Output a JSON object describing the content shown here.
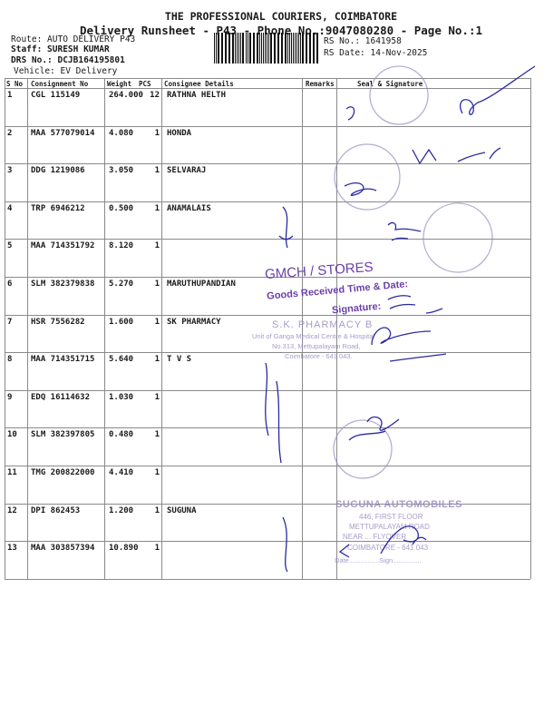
{
  "header": {
    "company": "THE PROFESSIONAL COURIERS, COIMBATORE",
    "subtitle": "Delivery Runsheet - P43 - Phone No.:9047080280 - Page No.:1",
    "route": "Route: AUTO DELIVERY P43",
    "staff": "Staff: SURESH KUMAR",
    "drs_no": "DRS No.: DCJB164195801",
    "vehicle": "Vehicle: EV Delivery",
    "rs_no": "RS No.: 1641958",
    "rs_date": "RS Date: 14-Nov-2025"
  },
  "table": {
    "columns": [
      "S No",
      "Consignment No",
      "Weight",
      "PCS",
      "Consignee Details",
      "Remarks",
      "Seal & Signature"
    ],
    "rows": [
      {
        "sno": "1",
        "consignment": "CGL 115149",
        "weight": "264.000",
        "pcs": "12",
        "consignee": "RATHNA HELTH"
      },
      {
        "sno": "2",
        "consignment": "MAA 577079014",
        "weight": "4.080",
        "pcs": "1",
        "consignee": "HONDA"
      },
      {
        "sno": "3",
        "consignment": "DDG 1219086",
        "weight": "3.050",
        "pcs": "1",
        "consignee": "SELVARAJ"
      },
      {
        "sno": "4",
        "consignment": "TRP 6946212",
        "weight": "0.500",
        "pcs": "1",
        "consignee": "ANAMALAIS"
      },
      {
        "sno": "5",
        "consignment": "MAA 714351792",
        "weight": "8.120",
        "pcs": "1",
        "consignee": ""
      },
      {
        "sno": "6",
        "consignment": "SLM 382379838",
        "weight": "5.270",
        "pcs": "1",
        "consignee": "MARUTHUPANDIAN"
      },
      {
        "sno": "7",
        "consignment": "HSR 7556282",
        "weight": "1.600",
        "pcs": "1",
        "consignee": "SK PHARMACY"
      },
      {
        "sno": "8",
        "consignment": "MAA 714351715",
        "weight": "5.640",
        "pcs": "1",
        "consignee": "T V S"
      },
      {
        "sno": "9",
        "consignment": "EDQ 16114632",
        "weight": "1.030",
        "pcs": "1",
        "consignee": ""
      },
      {
        "sno": "10",
        "consignment": "SLM 382397805",
        "weight": "0.480",
        "pcs": "1",
        "consignee": ""
      },
      {
        "sno": "11",
        "consignment": "TMG 200822000",
        "weight": "4.410",
        "pcs": "1",
        "consignee": ""
      },
      {
        "sno": "12",
        "consignment": "DPI 862453",
        "weight": "1.200",
        "pcs": "1",
        "consignee": "SUGUNA"
      },
      {
        "sno": "13",
        "consignment": "MAA 303857394",
        "weight": "10.890",
        "pcs": "1",
        "consignee": ""
      }
    ]
  },
  "stamps": {
    "gmch": {
      "line1": "GMCH / STORES",
      "line2": "Goods Received Time & Date:",
      "line3": "Signature:"
    },
    "sk_pharmacy": {
      "line1": "S.K. PHARMACY B",
      "line2": "Unit of Ganga Medical Centre & Hospital",
      "line3": "No.313, Mettupalayam Road,",
      "line4": "Coimbatore - 641 043."
    },
    "suguna": {
      "line1": "SUGUNA AUTOMOBILES",
      "line2": "446, FIRST FLOOR",
      "line3": "METTUPALAYAM ROAD",
      "line4": "NEAR ... FLYOVER",
      "line5": "COIMBATORE - 641 043",
      "line6": "Date................Sign..............."
    }
  },
  "colors": {
    "stamp_purple": "#6b3fa8",
    "ink_blue": "#2a2aa0",
    "stamp_faded": "#9a8ac0"
  }
}
